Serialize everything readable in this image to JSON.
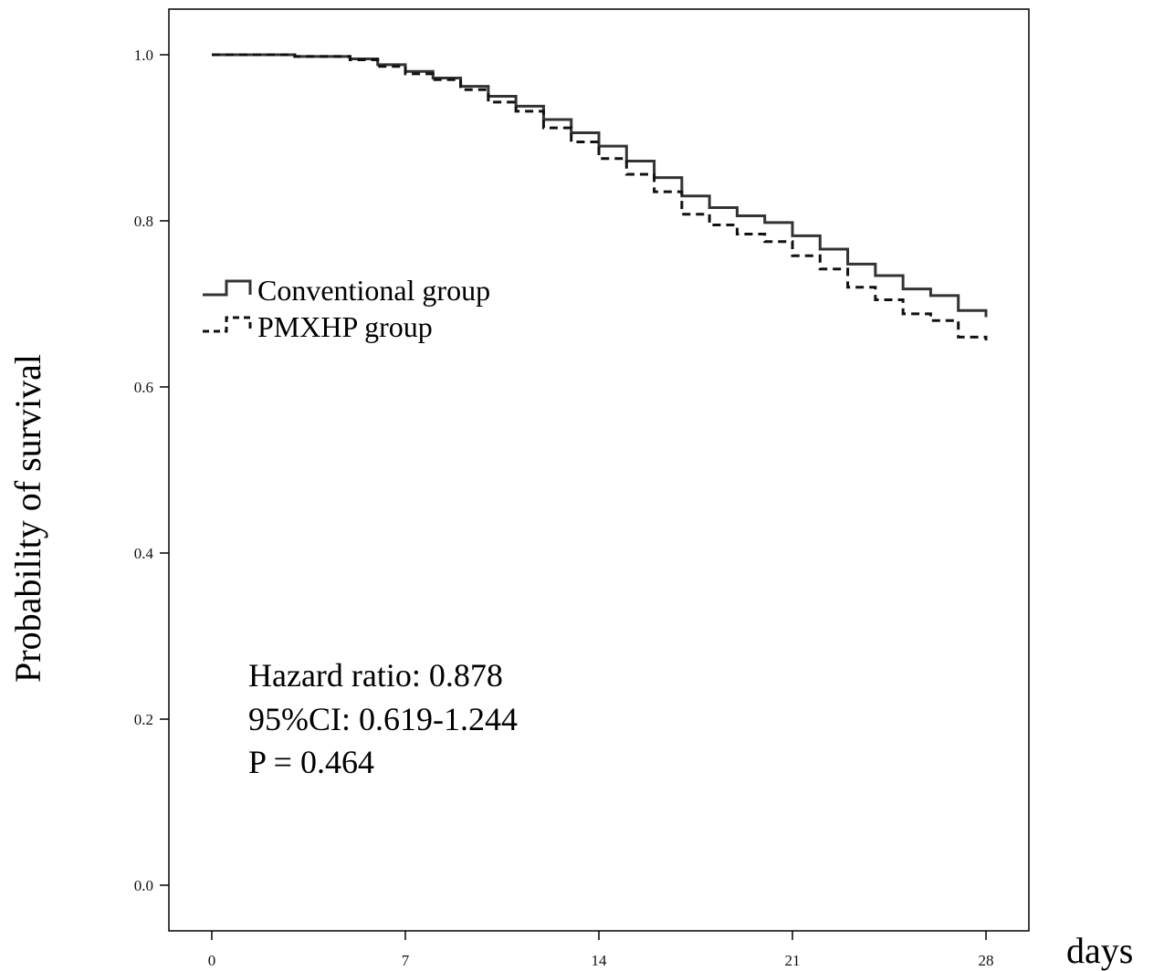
{
  "chart_data": {
    "type": "line",
    "title": "",
    "xlabel": "days",
    "ylabel": "Probability of survival",
    "xlim": [
      0,
      28
    ],
    "ylim": [
      0.0,
      1.0
    ],
    "x_ticks": [
      0,
      7,
      14,
      21,
      28
    ],
    "y_ticks": [
      0.0,
      0.2,
      0.4,
      0.6,
      0.8,
      1.0
    ],
    "x_tick_labels": [
      "0",
      "7",
      "14",
      "21",
      "28"
    ],
    "y_tick_labels": [
      "0.0",
      "0.2",
      "0.4",
      "0.6",
      "0.8",
      "1.0"
    ],
    "step": true,
    "legend_position": "upper-left",
    "series": [
      {
        "name": "Conventional group",
        "style": "solid",
        "color": "#333333",
        "x": [
          0,
          3,
          5,
          6,
          7,
          8,
          9,
          10,
          11,
          12,
          13,
          14,
          15,
          16,
          17,
          18,
          19,
          20,
          21,
          22,
          23,
          24,
          25,
          26,
          27,
          28
        ],
        "y": [
          1.0,
          0.998,
          0.995,
          0.988,
          0.98,
          0.972,
          0.962,
          0.95,
          0.938,
          0.922,
          0.906,
          0.89,
          0.872,
          0.852,
          0.83,
          0.816,
          0.806,
          0.798,
          0.782,
          0.766,
          0.748,
          0.734,
          0.718,
          0.71,
          0.692,
          0.684
        ]
      },
      {
        "name": "PMXHP group",
        "style": "dashed",
        "color": "#111111",
        "x": [
          0,
          3,
          5,
          6,
          7,
          8,
          9,
          10,
          11,
          12,
          13,
          14,
          15,
          16,
          17,
          18,
          19,
          20,
          21,
          22,
          23,
          24,
          25,
          26,
          27,
          28
        ],
        "y": [
          1.0,
          0.998,
          0.994,
          0.986,
          0.977,
          0.97,
          0.958,
          0.943,
          0.932,
          0.912,
          0.895,
          0.875,
          0.856,
          0.835,
          0.808,
          0.795,
          0.784,
          0.775,
          0.758,
          0.742,
          0.72,
          0.705,
          0.688,
          0.68,
          0.66,
          0.656
        ]
      }
    ],
    "annotations": [
      "Hazard ratio: 0.878",
      "95%CI: 0.619-1.244",
      "P = 0.464"
    ],
    "grid": false
  }
}
